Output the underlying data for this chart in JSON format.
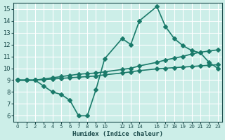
{
  "xlabel": "Humidex (Indice chaleur)",
  "background_color": "#cceee8",
  "grid_color": "#ffffff",
  "line_color": "#1a7a6a",
  "xlim": [
    -0.5,
    23.5
  ],
  "ylim": [
    5.5,
    15.5
  ],
  "yticks": [
    6,
    7,
    8,
    9,
    10,
    11,
    12,
    13,
    14,
    15
  ],
  "xticks": [
    0,
    1,
    2,
    3,
    4,
    5,
    6,
    7,
    8,
    9,
    10,
    12,
    13,
    14,
    16,
    17,
    18,
    19,
    20,
    21,
    22,
    23
  ],
  "xtick_labels": [
    "0",
    "1",
    "2",
    "3",
    "4",
    "5",
    "6",
    "7",
    "8",
    "9",
    "10",
    "12",
    "13",
    "14",
    "16",
    "17",
    "18",
    "19",
    "20",
    "21",
    "22",
    "23"
  ],
  "line1_x": [
    0,
    1,
    2,
    3,
    4,
    5,
    6,
    7,
    8,
    9,
    10,
    12,
    13,
    14,
    16,
    17,
    18,
    19,
    20,
    21,
    22,
    23
  ],
  "line1_y": [
    9,
    9,
    9,
    8.5,
    8,
    7.8,
    7.3,
    6,
    6,
    8.2,
    10.8,
    12.5,
    12.0,
    14.0,
    15.2,
    13.5,
    12.5,
    11.9,
    11.5,
    11.3,
    10.5,
    10.0
  ],
  "line2_x": [
    0,
    1,
    2,
    3,
    4,
    5,
    6,
    7,
    8,
    9,
    10,
    12,
    13,
    14,
    16,
    17,
    18,
    19,
    20,
    21,
    22,
    23
  ],
  "line2_y": [
    9,
    9,
    9,
    9.1,
    9.2,
    9.3,
    9.4,
    9.5,
    9.55,
    9.6,
    9.7,
    9.9,
    10.0,
    10.2,
    10.5,
    10.7,
    10.85,
    11.0,
    11.2,
    11.35,
    11.45,
    11.55
  ],
  "line3_x": [
    0,
    1,
    2,
    3,
    4,
    5,
    6,
    7,
    8,
    9,
    10,
    12,
    13,
    14,
    16,
    17,
    18,
    19,
    20,
    21,
    22,
    23
  ],
  "line3_y": [
    9,
    9,
    9,
    9.05,
    9.1,
    9.15,
    9.2,
    9.25,
    9.3,
    9.35,
    9.45,
    9.6,
    9.7,
    9.8,
    9.95,
    10.0,
    10.05,
    10.1,
    10.15,
    10.2,
    10.25,
    10.3
  ],
  "marker": "D",
  "markersize": 3,
  "linewidth": 1.2,
  "tick_color": "#1a4a4a",
  "label_fontsize": 6.5
}
